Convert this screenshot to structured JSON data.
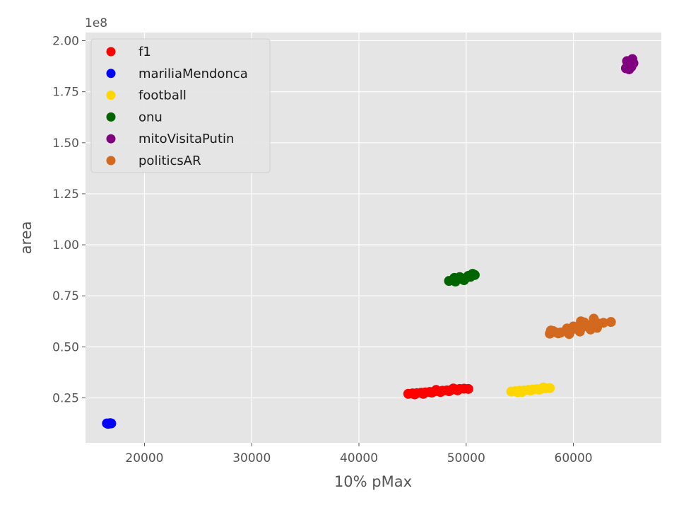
{
  "chart_data": {
    "type": "scatter",
    "xlabel": "10% pMax",
    "ylabel": "area",
    "y_offset_label": "1e8",
    "xlim": [
      14500,
      68200
    ],
    "ylim": [
      3000000,
      204000000
    ],
    "x_ticks": [
      20000,
      30000,
      40000,
      50000,
      60000
    ],
    "x_tick_labels": [
      "20000",
      "30000",
      "40000",
      "50000",
      "60000"
    ],
    "y_ticks": [
      25000000,
      50000000,
      75000000,
      100000000,
      125000000,
      150000000,
      175000000,
      200000000
    ],
    "y_tick_labels": [
      "0.25",
      "0.50",
      "0.75",
      "1.00",
      "1.25",
      "1.50",
      "1.75",
      "2.00"
    ],
    "grid": true,
    "legend_position": "upper-left",
    "series": [
      {
        "name": "f1",
        "color": "#ff0000",
        "points": [
          [
            44600,
            27000000
          ],
          [
            45000,
            27200000
          ],
          [
            45400,
            27300000
          ],
          [
            45800,
            27500000
          ],
          [
            46200,
            27700000
          ],
          [
            46600,
            27900000
          ],
          [
            47000,
            28100000
          ],
          [
            47400,
            28300000
          ],
          [
            47800,
            28500000
          ],
          [
            48200,
            28700000
          ],
          [
            48600,
            28900000
          ],
          [
            49000,
            29200000
          ],
          [
            49400,
            29400000
          ],
          [
            49800,
            29500000
          ],
          [
            50200,
            29400000
          ],
          [
            45200,
            26700000
          ],
          [
            46000,
            27000000
          ],
          [
            46800,
            27600000
          ],
          [
            47600,
            27900000
          ],
          [
            48400,
            28300000
          ],
          [
            49200,
            28700000
          ],
          [
            47200,
            28900000
          ],
          [
            48800,
            29600000
          ]
        ]
      },
      {
        "name": "mariliaMendonca",
        "color": "#0000ff",
        "points": [
          [
            16500,
            12500000
          ],
          [
            16700,
            12400000
          ],
          [
            16800,
            12600000
          ],
          [
            16900,
            12500000
          ],
          [
            16600,
            12300000
          ]
        ]
      },
      {
        "name": "football",
        "color": "#ffd700",
        "points": [
          [
            54200,
            28100000
          ],
          [
            54600,
            28300000
          ],
          [
            55000,
            28500000
          ],
          [
            55400,
            28700000
          ],
          [
            55800,
            28900000
          ],
          [
            56200,
            29100000
          ],
          [
            56600,
            29300000
          ],
          [
            57000,
            29500000
          ],
          [
            57400,
            29700000
          ],
          [
            57800,
            29800000
          ],
          [
            55200,
            27900000
          ],
          [
            56000,
            28600000
          ],
          [
            56800,
            29000000
          ],
          [
            54800,
            27700000
          ],
          [
            57200,
            30100000
          ]
        ]
      },
      {
        "name": "onu",
        "color": "#006400",
        "points": [
          [
            48400,
            82300000
          ],
          [
            48800,
            82600000
          ],
          [
            49200,
            83000000
          ],
          [
            49600,
            83400000
          ],
          [
            50000,
            83800000
          ],
          [
            50400,
            84300000
          ],
          [
            50800,
            85200000
          ],
          [
            49000,
            82000000
          ],
          [
            49800,
            82700000
          ],
          [
            50200,
            84800000
          ],
          [
            48900,
            83800000
          ],
          [
            49400,
            84200000
          ],
          [
            50600,
            85800000
          ]
        ]
      },
      {
        "name": "mitoVisitaPutin",
        "color": "#800080",
        "points": [
          [
            64900,
            186500000
          ],
          [
            65100,
            188000000
          ],
          [
            65300,
            189500000
          ],
          [
            65500,
            191000000
          ],
          [
            65200,
            186000000
          ],
          [
            65000,
            190000000
          ],
          [
            65400,
            187200000
          ],
          [
            65600,
            189000000
          ]
        ]
      },
      {
        "name": "politicsAR",
        "color": "#d2691e",
        "points": [
          [
            57800,
            56500000
          ],
          [
            58300,
            57200000
          ],
          [
            58800,
            57000000
          ],
          [
            59300,
            57800000
          ],
          [
            59800,
            58300000
          ],
          [
            60300,
            58800000
          ],
          [
            60800,
            59500000
          ],
          [
            61300,
            60200000
          ],
          [
            61800,
            61000000
          ],
          [
            62300,
            61500000
          ],
          [
            62800,
            61800000
          ],
          [
            63500,
            62200000
          ],
          [
            57900,
            58000000
          ],
          [
            58600,
            56600000
          ],
          [
            59600,
            56300000
          ],
          [
            60600,
            57500000
          ],
          [
            61600,
            58500000
          ],
          [
            62200,
            59300000
          ],
          [
            60000,
            60000000
          ],
          [
            61000,
            62000000
          ],
          [
            61900,
            63800000
          ],
          [
            60700,
            62500000
          ],
          [
            59400,
            59000000
          ],
          [
            62100,
            60200000
          ],
          [
            58100,
            57800000
          ],
          [
            61400,
            60500000
          ]
        ]
      }
    ]
  }
}
